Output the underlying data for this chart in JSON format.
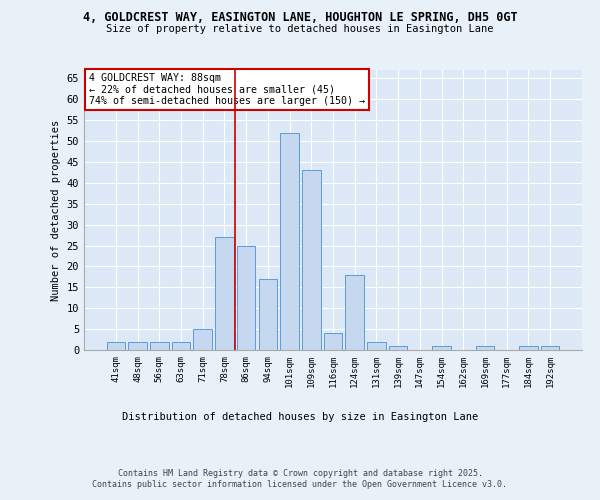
{
  "title1": "4, GOLDCREST WAY, EASINGTON LANE, HOUGHTON LE SPRING, DH5 0GT",
  "title2": "Size of property relative to detached houses in Easington Lane",
  "xlabel": "Distribution of detached houses by size in Easington Lane",
  "ylabel": "Number of detached properties",
  "categories": [
    "41sqm",
    "48sqm",
    "56sqm",
    "63sqm",
    "71sqm",
    "78sqm",
    "86sqm",
    "94sqm",
    "101sqm",
    "109sqm",
    "116sqm",
    "124sqm",
    "131sqm",
    "139sqm",
    "147sqm",
    "154sqm",
    "162sqm",
    "169sqm",
    "177sqm",
    "184sqm",
    "192sqm"
  ],
  "values": [
    2,
    2,
    2,
    2,
    5,
    27,
    25,
    17,
    52,
    43,
    4,
    18,
    2,
    1,
    0,
    1,
    0,
    1,
    0,
    1,
    1
  ],
  "bar_color": "#c5d8f0",
  "bar_edge_color": "#5b9bd5",
  "vline_x": 5.5,
  "vline_color": "#cc0000",
  "annotation_text": "4 GOLDCREST WAY: 88sqm\n← 22% of detached houses are smaller (45)\n74% of semi-detached houses are larger (150) →",
  "annotation_box_color": "#ffffff",
  "annotation_box_edge": "#cc0000",
  "ylim": [
    0,
    67
  ],
  "yticks": [
    0,
    5,
    10,
    15,
    20,
    25,
    30,
    35,
    40,
    45,
    50,
    55,
    60,
    65
  ],
  "footer1": "Contains HM Land Registry data © Crown copyright and database right 2025.",
  "footer2": "Contains public sector information licensed under the Open Government Licence v3.0.",
  "bg_color": "#e8f0f8",
  "plot_bg_color": "#dce8f5"
}
